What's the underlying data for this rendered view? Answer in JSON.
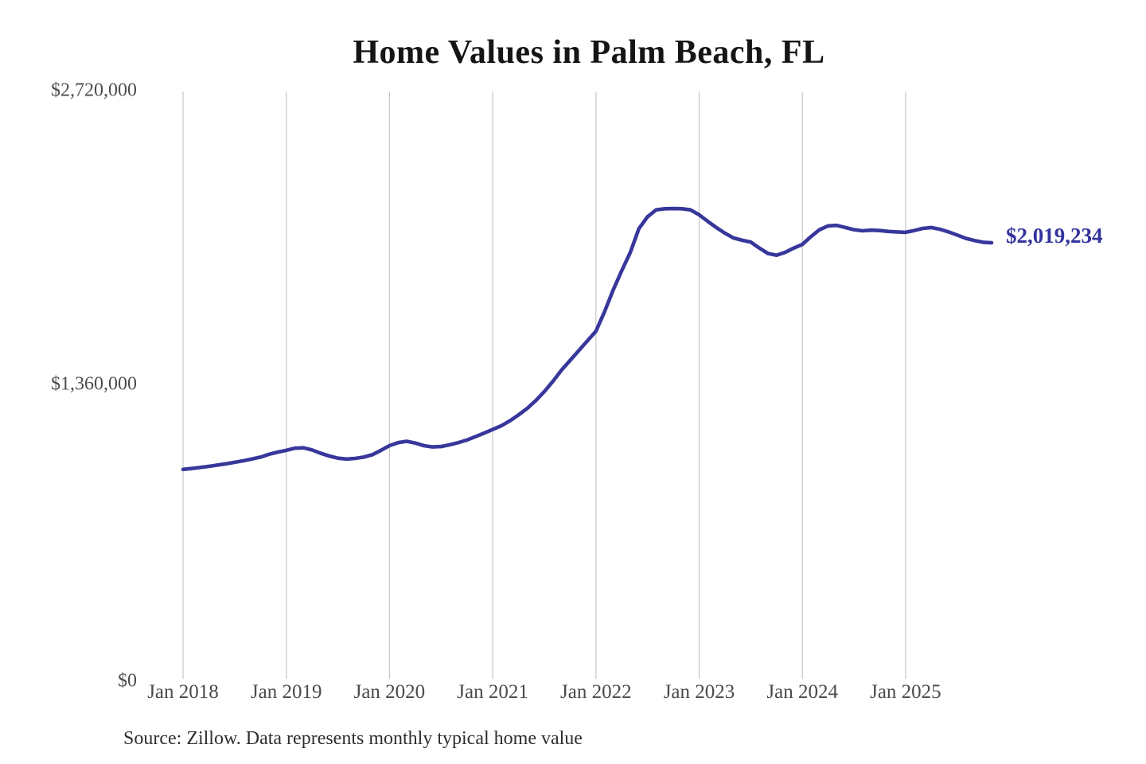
{
  "title": "Home Values in Palm Beach, FL",
  "source_note": "Source: Zillow. Data represents monthly typical home value",
  "colors": {
    "line": "#37379b",
    "annotation_text": "#33339e",
    "grid": "#c6c6c6",
    "axis_text": "#4a4a4a",
    "title_text": "#151515",
    "background": "#ffffff"
  },
  "chart_data": {
    "type": "line",
    "title": "Home Values in Palm Beach, FL",
    "series_name": "Typical monthly home value (USD)",
    "xlabel": "",
    "ylabel": "",
    "ylim": [
      0,
      2720000
    ],
    "grid": "vertical-only",
    "legend": "none",
    "annotation": "$2,019,234",
    "latest_value": 2019234,
    "y_ticks": [
      {
        "label": "$0",
        "value": 0
      },
      {
        "label": "$1,360,000",
        "value": 1360000
      },
      {
        "label": "$2,720,000",
        "value": 2720000
      }
    ],
    "x_ticks": [
      {
        "label": "Jan 2018",
        "month_index": 0
      },
      {
        "label": "Jan 2019",
        "month_index": 12
      },
      {
        "label": "Jan 2020",
        "month_index": 24
      },
      {
        "label": "Jan 2021",
        "month_index": 36
      },
      {
        "label": "Jan 2022",
        "month_index": 48
      },
      {
        "label": "Jan 2023",
        "month_index": 60
      },
      {
        "label": "Jan 2024",
        "month_index": 72
      },
      {
        "label": "Jan 2025",
        "month_index": 84
      }
    ],
    "x": [
      "2018-01",
      "2018-02",
      "2018-03",
      "2018-04",
      "2018-05",
      "2018-06",
      "2018-07",
      "2018-08",
      "2018-09",
      "2018-10",
      "2018-11",
      "2018-12",
      "2019-01",
      "2019-02",
      "2019-03",
      "2019-04",
      "2019-05",
      "2019-06",
      "2019-07",
      "2019-08",
      "2019-09",
      "2019-10",
      "2019-11",
      "2019-12",
      "2020-01",
      "2020-02",
      "2020-03",
      "2020-04",
      "2020-05",
      "2020-06",
      "2020-07",
      "2020-08",
      "2020-09",
      "2020-10",
      "2020-11",
      "2020-12",
      "2021-01",
      "2021-02",
      "2021-03",
      "2021-04",
      "2021-05",
      "2021-06",
      "2021-07",
      "2021-08",
      "2021-09",
      "2021-10",
      "2021-11",
      "2021-12",
      "2022-01",
      "2022-02",
      "2022-03",
      "2022-04",
      "2022-05",
      "2022-06",
      "2022-07",
      "2022-08",
      "2022-09",
      "2022-10",
      "2022-11",
      "2022-12",
      "2023-01",
      "2023-02",
      "2023-03",
      "2023-04",
      "2023-05",
      "2023-06",
      "2023-07",
      "2023-08",
      "2023-09",
      "2023-10",
      "2023-11",
      "2023-12",
      "2024-01",
      "2024-02",
      "2024-03",
      "2024-04",
      "2024-05",
      "2024-06",
      "2024-07",
      "2024-08",
      "2024-09",
      "2024-10",
      "2024-11",
      "2024-12",
      "2025-01",
      "2025-02",
      "2025-03",
      "2025-04",
      "2025-05",
      "2025-06",
      "2025-07",
      "2025-08",
      "2025-09",
      "2025-10",
      "2025-11"
    ],
    "values": [
      970000,
      974000,
      979000,
      984000,
      990000,
      996000,
      1003000,
      1010000,
      1018000,
      1027000,
      1040000,
      1050000,
      1058000,
      1068000,
      1070000,
      1060000,
      1045000,
      1032000,
      1022000,
      1018000,
      1021000,
      1027000,
      1038000,
      1058000,
      1080000,
      1094000,
      1100000,
      1092000,
      1080000,
      1074000,
      1076000,
      1084000,
      1094000,
      1106000,
      1122000,
      1138000,
      1155000,
      1172000,
      1195000,
      1222000,
      1252000,
      1288000,
      1330000,
      1378000,
      1430000,
      1475000,
      1520000,
      1565000,
      1610000,
      1700000,
      1800000,
      1890000,
      1975000,
      2085000,
      2140000,
      2172000,
      2177000,
      2178000,
      2177000,
      2172000,
      2149000,
      2119000,
      2090000,
      2064000,
      2042000,
      2031000,
      2023000,
      1995000,
      1970000,
      1962000,
      1975000,
      1995000,
      2012000,
      2048000,
      2080000,
      2098000,
      2100000,
      2090000,
      2080000,
      2075000,
      2078000,
      2076000,
      2072000,
      2070000,
      2068000,
      2076000,
      2086000,
      2090000,
      2082000,
      2070000,
      2055000,
      2040000,
      2030000,
      2022000,
      2019234
    ]
  }
}
